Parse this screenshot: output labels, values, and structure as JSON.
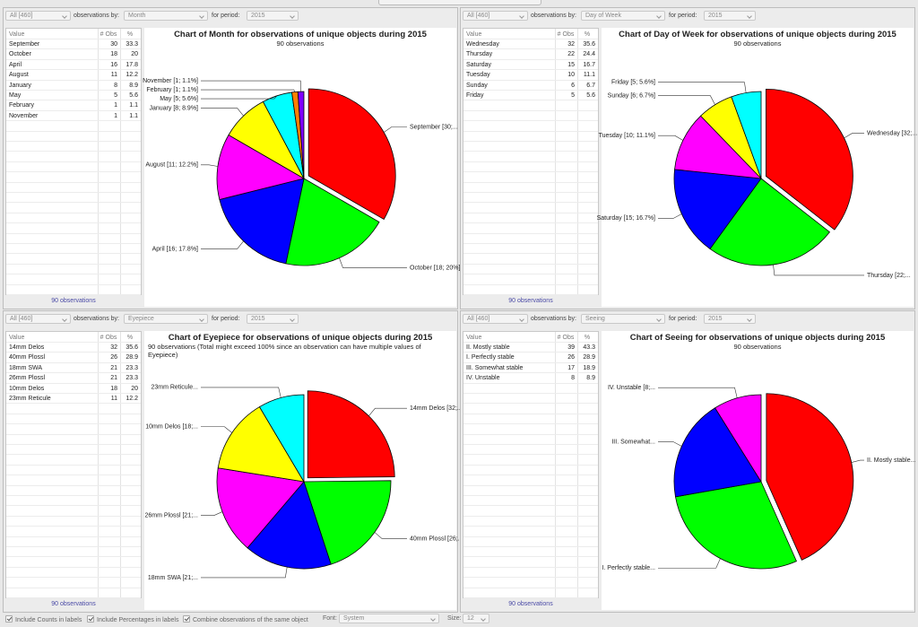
{
  "panels": [
    {
      "filter": "All [460]",
      "observations_by_label": "observations by:",
      "observations_by": "Month",
      "period_label": "for period:",
      "period": "2015",
      "table": {
        "columns": [
          "Value",
          "# Obs",
          "%"
        ],
        "rows": [
          [
            "September",
            30,
            33.3
          ],
          [
            "October",
            18,
            20
          ],
          [
            "April",
            16,
            17.8
          ],
          [
            "August",
            11,
            12.2
          ],
          [
            "January",
            8,
            8.9
          ],
          [
            "May",
            5,
            5.6
          ],
          [
            "February",
            1,
            1.1
          ],
          [
            "November",
            1,
            1.1
          ]
        ]
      },
      "footer": "90 observations"
    },
    {
      "filter": "All [460]",
      "observations_by_label": "observations by:",
      "observations_by": "Day of Week",
      "period_label": "for period:",
      "period": "2015",
      "table": {
        "columns": [
          "Value",
          "# Obs",
          "%"
        ],
        "rows": [
          [
            "Wednesday",
            32,
            35.6
          ],
          [
            "Thursday",
            22,
            24.4
          ],
          [
            "Saturday",
            15,
            16.7
          ],
          [
            "Tuesday",
            10,
            11.1
          ],
          [
            "Sunday",
            6,
            6.7
          ],
          [
            "Friday",
            5,
            5.6
          ]
        ]
      },
      "footer": "90 observations"
    },
    {
      "filter": "All [460]",
      "observations_by_label": "observations by:",
      "observations_by": "Eyepiece",
      "period_label": "for period:",
      "period": "2015",
      "table": {
        "columns": [
          "Value",
          "# Obs",
          "%"
        ],
        "rows": [
          [
            "14mm Delos",
            32,
            35.6
          ],
          [
            "40mm Plossl",
            26,
            28.9
          ],
          [
            "18mm SWA",
            21,
            23.3
          ],
          [
            "26mm Plossl",
            21,
            23.3
          ],
          [
            "10mm Delos",
            18,
            20
          ],
          [
            "23mm Reticule",
            11,
            12.2
          ]
        ]
      },
      "footer": "90 observations"
    },
    {
      "filter": "All [460]",
      "observations_by_label": "observations by:",
      "observations_by": "Seeing",
      "period_label": "for period:",
      "period": "2015",
      "table": {
        "columns": [
          "Value",
          "# Obs",
          "%"
        ],
        "rows": [
          [
            "II. Mostly stable",
            39,
            43.3
          ],
          [
            "I. Perfectly stable",
            26,
            28.9
          ],
          [
            "III. Somewhat stable",
            17,
            18.9
          ],
          [
            "IV. Unstable",
            8,
            8.9
          ]
        ]
      },
      "footer": "90 observations"
    }
  ],
  "chart_data": [
    {
      "type": "pie",
      "title": "Chart of Month for observations of unique objects during 2015",
      "subtitle": "90 observations",
      "labels": [
        "September [30;...",
        "October [18; 20%]",
        "April [16; 17.8%]",
        "August [11; 12.2%]",
        "January [8; 8.9%]",
        "May [5; 5.6%]",
        "February [1; 1.1%]",
        "November [1; 1.1%]"
      ],
      "values": [
        30,
        18,
        16,
        11,
        8,
        5,
        1,
        1
      ],
      "colors": [
        "#ff0000",
        "#00ff00",
        "#0000ff",
        "#ff00ff",
        "#ffff00",
        "#00ffff",
        "#ff8000",
        "#8000ff"
      ]
    },
    {
      "type": "pie",
      "title": "Chart of Day of Week for observations of unique objects during 2015",
      "subtitle": "90 observations",
      "labels": [
        "Wednesday [32;...",
        "Thursday [22;...",
        "Saturday [15; 16.7%]",
        "Tuesday [10; 11.1%]",
        "Sunday [6; 6.7%]",
        "Friday [5; 5.6%]"
      ],
      "values": [
        32,
        22,
        15,
        10,
        6,
        5
      ],
      "colors": [
        "#ff0000",
        "#00ff00",
        "#0000ff",
        "#ff00ff",
        "#ffff00",
        "#00ffff"
      ]
    },
    {
      "type": "pie",
      "title": "Chart of Eyepiece for observations of unique objects during 2015",
      "subtitle": "90 observations  (Total might exceed 100% since an observation can have multiple values of Eyepiece)",
      "labels": [
        "14mm Delos [32;...",
        "40mm Plossl [26;...",
        "18mm SWA [21;...",
        "26mm Plossl [21;...",
        "10mm Delos [18;...",
        "23mm Reticule..."
      ],
      "values": [
        32,
        26,
        21,
        21,
        18,
        11
      ],
      "colors": [
        "#ff0000",
        "#00ff00",
        "#0000ff",
        "#ff00ff",
        "#ffff00",
        "#00ffff"
      ]
    },
    {
      "type": "pie",
      "title": "Chart of Seeing for observations of unique objects during 2015",
      "subtitle": "90 observations",
      "labels": [
        "II. Mostly stable...",
        "I. Perfectly stable...",
        "III. Somewhat...",
        "IV. Unstable [8;..."
      ],
      "values": [
        39,
        26,
        17,
        8
      ],
      "colors": [
        "#ff0000",
        "#00ff00",
        "#0000ff",
        "#ff00ff"
      ]
    }
  ],
  "bottom_bar": {
    "include_counts": "Include Counts in labels",
    "include_percentages": "Include Percentages in labels",
    "combine": "Combine observations of the same object",
    "font_label": "Font:",
    "font": "System",
    "size_label": "Size:",
    "size": "12"
  }
}
